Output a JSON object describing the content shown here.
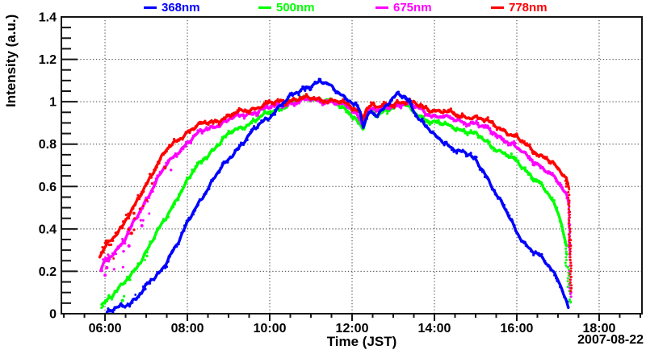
{
  "chart_data": {
    "type": "scatter",
    "title": "",
    "xlabel": "Time (JST)",
    "ylabel": "Intensity (a.u.)",
    "date_label": "2007-08-22",
    "x_axis": {
      "tick_labels": [
        "06:00",
        "08:00",
        "10:00",
        "12:00",
        "14:00",
        "16:00",
        "18:00"
      ],
      "tick_hours": [
        6,
        8,
        10,
        12,
        14,
        16,
        18
      ],
      "minor_step_hours": 0.5,
      "range_hours": [
        4.94,
        19.04
      ]
    },
    "y_axis": {
      "tick_labels": [
        "0",
        "0.2",
        "0.4",
        "0.6",
        "0.8",
        "1",
        "1.2",
        "1.4"
      ],
      "tick_values": [
        0,
        0.2,
        0.4,
        0.6,
        0.8,
        1,
        1.2,
        1.4
      ],
      "minor_step": 0.05,
      "range": [
        0,
        1.4
      ]
    },
    "grid": {
      "vertical_at_hours": [
        6,
        8,
        10,
        12,
        14,
        16,
        18
      ],
      "horizontal_at": [
        0.2,
        0.4,
        0.6,
        0.8,
        1.0,
        1.2
      ],
      "style": "dotted"
    },
    "legend_position": "top",
    "series": [
      {
        "name": "368nm",
        "color": "#0000ff",
        "points": [
          [
            6.05,
            0.005
          ],
          [
            6.3,
            0.025
          ],
          [
            6.57,
            0.046
          ],
          [
            6.85,
            0.095
          ],
          [
            7.1,
            0.15
          ],
          [
            7.23,
            0.17
          ],
          [
            7.4,
            0.215
          ],
          [
            7.55,
            0.27
          ],
          [
            7.8,
            0.345
          ],
          [
            7.98,
            0.415
          ],
          [
            8.2,
            0.5
          ],
          [
            8.53,
            0.605
          ],
          [
            8.8,
            0.68
          ],
          [
            9.02,
            0.73
          ],
          [
            9.25,
            0.79
          ],
          [
            9.51,
            0.845
          ],
          [
            9.75,
            0.89
          ],
          [
            10.0,
            0.93
          ],
          [
            10.25,
            0.985
          ],
          [
            10.49,
            1.02
          ],
          [
            10.7,
            1.045
          ],
          [
            10.98,
            1.08
          ],
          [
            11.22,
            1.095
          ],
          [
            11.35,
            1.085
          ],
          [
            11.47,
            1.07
          ],
          [
            11.67,
            1.045
          ],
          [
            11.86,
            1.02
          ],
          [
            11.97,
            1.005
          ],
          [
            12.05,
            0.99
          ],
          [
            12.12,
            0.975
          ],
          [
            12.18,
            0.96
          ],
          [
            12.27,
            0.875
          ],
          [
            12.33,
            0.91
          ],
          [
            12.45,
            0.95
          ],
          [
            12.6,
            0.94
          ],
          [
            12.75,
            0.97
          ],
          [
            12.9,
            1.0
          ],
          [
            13.1,
            1.03
          ],
          [
            13.3,
            1.02
          ],
          [
            13.45,
            0.98
          ],
          [
            13.6,
            0.93
          ],
          [
            13.8,
            0.885
          ],
          [
            14.0,
            0.835
          ],
          [
            14.3,
            0.8
          ],
          [
            14.6,
            0.77
          ],
          [
            14.85,
            0.745
          ],
          [
            15.0,
            0.72
          ],
          [
            15.2,
            0.675
          ],
          [
            15.5,
            0.565
          ],
          [
            15.8,
            0.46
          ],
          [
            16.0,
            0.385
          ],
          [
            16.3,
            0.31
          ],
          [
            16.6,
            0.26
          ],
          [
            16.8,
            0.22
          ],
          [
            17.0,
            0.17
          ],
          [
            17.1,
            0.12
          ],
          [
            17.18,
            0.07
          ],
          [
            17.26,
            0.02
          ]
        ]
      },
      {
        "name": "500nm",
        "color": "#00ff00",
        "points": [
          [
            5.92,
            0.05
          ],
          [
            6.1,
            0.075
          ],
          [
            6.44,
            0.135
          ],
          [
            6.7,
            0.2
          ],
          [
            6.97,
            0.285
          ],
          [
            7.23,
            0.37
          ],
          [
            7.49,
            0.455
          ],
          [
            7.75,
            0.55
          ],
          [
            7.98,
            0.62
          ],
          [
            8.2,
            0.685
          ],
          [
            8.47,
            0.745
          ],
          [
            8.75,
            0.8
          ],
          [
            9.0,
            0.845
          ],
          [
            9.25,
            0.875
          ],
          [
            9.51,
            0.9
          ],
          [
            9.75,
            0.925
          ],
          [
            10.0,
            0.945
          ],
          [
            10.25,
            0.97
          ],
          [
            10.49,
            0.995
          ],
          [
            10.75,
            1.005
          ],
          [
            10.98,
            1.02
          ],
          [
            11.25,
            1.015
          ],
          [
            11.47,
            1.0
          ],
          [
            11.7,
            0.975
          ],
          [
            11.9,
            0.96
          ],
          [
            12.05,
            0.93
          ],
          [
            12.18,
            0.9
          ],
          [
            12.27,
            0.87
          ],
          [
            12.35,
            0.94
          ],
          [
            12.5,
            0.95
          ],
          [
            12.62,
            0.93
          ],
          [
            12.78,
            0.96
          ],
          [
            12.9,
            0.97
          ],
          [
            13.1,
            0.985
          ],
          [
            13.3,
            0.98
          ],
          [
            13.5,
            0.95
          ],
          [
            13.75,
            0.925
          ],
          [
            14.0,
            0.9
          ],
          [
            14.5,
            0.88
          ],
          [
            15.0,
            0.845
          ],
          [
            15.5,
            0.78
          ],
          [
            16.0,
            0.715
          ],
          [
            16.5,
            0.63
          ],
          [
            16.8,
            0.55
          ],
          [
            17.0,
            0.48
          ],
          [
            17.1,
            0.42
          ],
          [
            17.2,
            0.32
          ],
          [
            17.25,
            0.22
          ],
          [
            17.29,
            0.12
          ],
          [
            17.32,
            0.05
          ]
        ]
      },
      {
        "name": "675nm",
        "color": "#ff00ff",
        "points": [
          [
            5.9,
            0.21
          ],
          [
            6.0,
            0.25
          ],
          [
            6.2,
            0.29
          ],
          [
            6.44,
            0.33
          ],
          [
            6.7,
            0.43
          ],
          [
            6.97,
            0.53
          ],
          [
            7.23,
            0.62
          ],
          [
            7.49,
            0.7
          ],
          [
            7.75,
            0.76
          ],
          [
            7.98,
            0.805
          ],
          [
            8.2,
            0.84
          ],
          [
            8.47,
            0.87
          ],
          [
            8.75,
            0.895
          ],
          [
            9.0,
            0.915
          ],
          [
            9.25,
            0.93
          ],
          [
            9.51,
            0.945
          ],
          [
            9.75,
            0.96
          ],
          [
            10.0,
            0.97
          ],
          [
            10.25,
            0.985
          ],
          [
            10.49,
            0.995
          ],
          [
            10.75,
            1.0
          ],
          [
            10.98,
            1.01
          ],
          [
            11.25,
            1.005
          ],
          [
            11.47,
            1.0
          ],
          [
            11.7,
            0.985
          ],
          [
            11.9,
            0.975
          ],
          [
            12.05,
            0.955
          ],
          [
            12.18,
            0.93
          ],
          [
            12.27,
            0.9
          ],
          [
            12.35,
            0.955
          ],
          [
            12.5,
            0.965
          ],
          [
            12.65,
            0.955
          ],
          [
            12.8,
            0.97
          ],
          [
            12.95,
            0.98
          ],
          [
            13.1,
            0.99
          ],
          [
            13.3,
            0.99
          ],
          [
            13.5,
            0.98
          ],
          [
            13.75,
            0.955
          ],
          [
            14.0,
            0.935
          ],
          [
            14.5,
            0.915
          ],
          [
            15.0,
            0.895
          ],
          [
            15.5,
            0.85
          ],
          [
            16.0,
            0.78
          ],
          [
            16.5,
            0.71
          ],
          [
            16.8,
            0.66
          ],
          [
            17.0,
            0.62
          ],
          [
            17.1,
            0.59
          ],
          [
            17.2,
            0.565
          ],
          [
            17.26,
            0.53
          ],
          [
            17.28,
            0.42
          ],
          [
            17.3,
            0.28
          ],
          [
            17.33,
            0.08
          ]
        ]
      },
      {
        "name": "778nm",
        "color": "#ff0000",
        "points": [
          [
            5.88,
            0.27
          ],
          [
            6.0,
            0.32
          ],
          [
            6.2,
            0.365
          ],
          [
            6.44,
            0.415
          ],
          [
            6.7,
            0.5
          ],
          [
            6.97,
            0.605
          ],
          [
            7.23,
            0.69
          ],
          [
            7.49,
            0.77
          ],
          [
            7.75,
            0.82
          ],
          [
            7.98,
            0.855
          ],
          [
            8.2,
            0.88
          ],
          [
            8.47,
            0.9
          ],
          [
            8.75,
            0.915
          ],
          [
            9.0,
            0.93
          ],
          [
            9.25,
            0.95
          ],
          [
            9.51,
            0.965
          ],
          [
            9.75,
            0.978
          ],
          [
            10.0,
            0.99
          ],
          [
            10.25,
            1.0
          ],
          [
            10.49,
            1.008
          ],
          [
            10.75,
            1.012
          ],
          [
            10.98,
            1.015
          ],
          [
            11.25,
            1.012
          ],
          [
            11.47,
            1.008
          ],
          [
            11.7,
            0.995
          ],
          [
            11.9,
            0.985
          ],
          [
            12.05,
            0.97
          ],
          [
            12.18,
            0.955
          ],
          [
            12.27,
            0.93
          ],
          [
            12.35,
            0.97
          ],
          [
            12.5,
            0.98
          ],
          [
            12.65,
            0.97
          ],
          [
            12.8,
            0.985
          ],
          [
            12.95,
            0.99
          ],
          [
            13.1,
            1.0
          ],
          [
            13.3,
            1.0
          ],
          [
            13.5,
            0.99
          ],
          [
            13.75,
            0.975
          ],
          [
            14.0,
            0.96
          ],
          [
            14.5,
            0.94
          ],
          [
            15.0,
            0.925
          ],
          [
            15.5,
            0.89
          ],
          [
            16.0,
            0.825
          ],
          [
            16.5,
            0.76
          ],
          [
            16.8,
            0.72
          ],
          [
            17.0,
            0.68
          ],
          [
            17.1,
            0.66
          ],
          [
            17.2,
            0.64
          ],
          [
            17.26,
            0.6
          ],
          [
            17.28,
            0.48
          ],
          [
            17.31,
            0.32
          ],
          [
            17.33,
            0.1
          ]
        ]
      }
    ]
  }
}
